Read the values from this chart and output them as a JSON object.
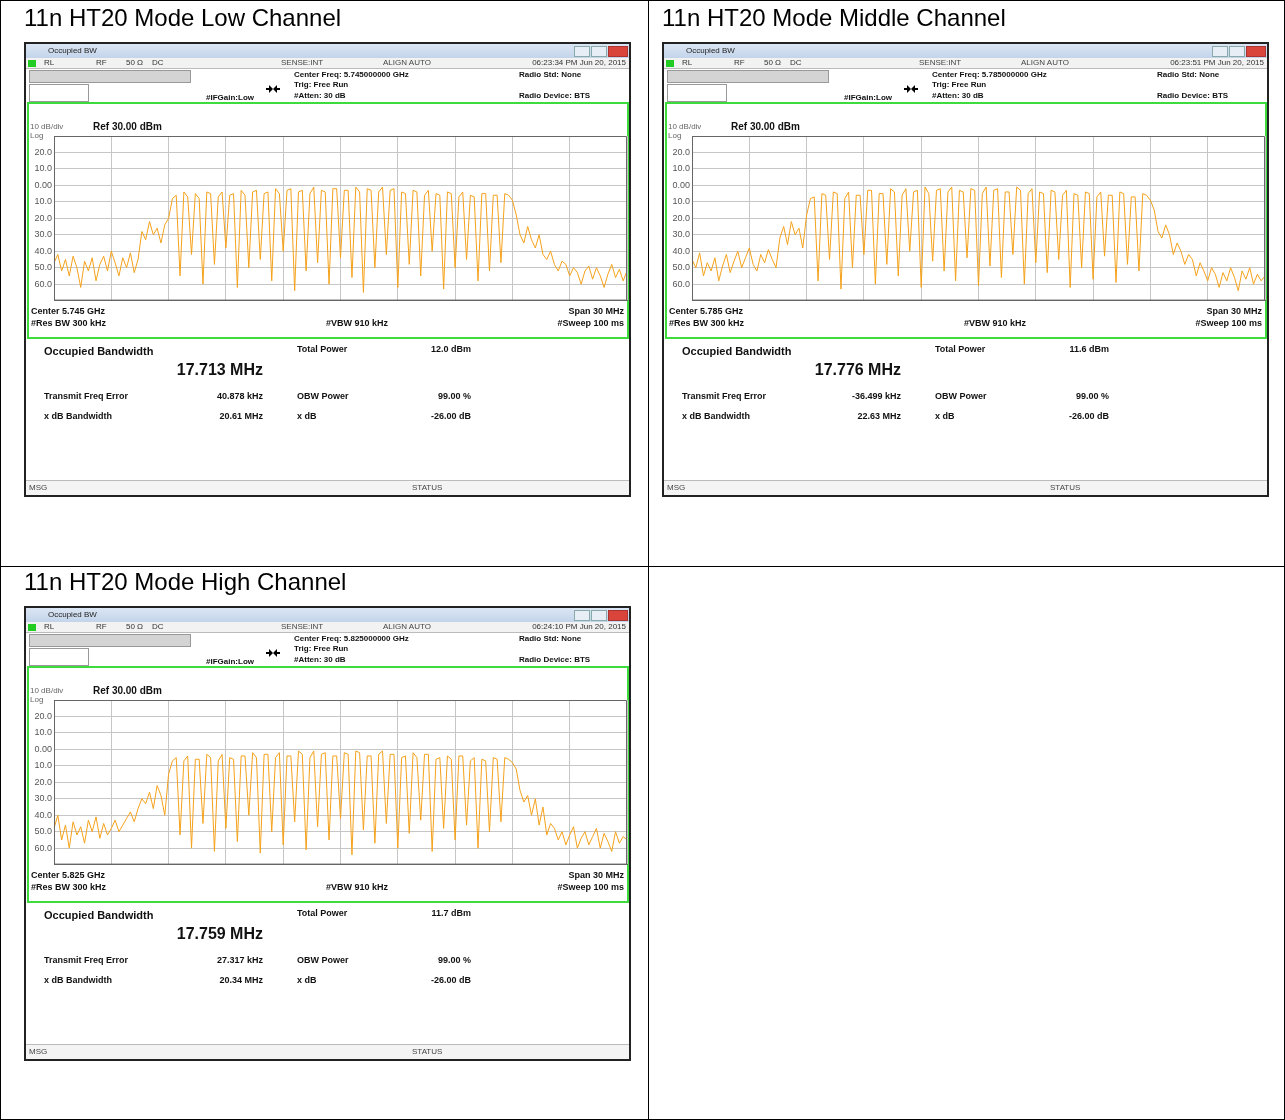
{
  "chart_data": [
    {
      "type": "line",
      "title": "11n HT20 Mode Low Channel",
      "color": "#f5a21b",
      "marker": "none",
      "grid": true,
      "tick_labels": "y",
      "categories": [
        null,
        null,
        null,
        null,
        null,
        null,
        null,
        null,
        null,
        null,
        null,
        null,
        null,
        null,
        null,
        null,
        null,
        null,
        null,
        null,
        null,
        null,
        null,
        null,
        null,
        null,
        null,
        null,
        null,
        null,
        null,
        null,
        null,
        null,
        null,
        null,
        null,
        null,
        null,
        null,
        null,
        null,
        null,
        null,
        null,
        null,
        null,
        null,
        null,
        null,
        null,
        null,
        null,
        null,
        null,
        null,
        null,
        null,
        null,
        null,
        null,
        null,
        null,
        null,
        null,
        null,
        null,
        null,
        null,
        null,
        null,
        null,
        null,
        null,
        null,
        null,
        null,
        null,
        null,
        null,
        null,
        null,
        null,
        null,
        null,
        null,
        null,
        null,
        null,
        null,
        null,
        null,
        null,
        null,
        null,
        null,
        null,
        null,
        null,
        null,
        null,
        null,
        null,
        null,
        null,
        null,
        null,
        null,
        null,
        null,
        null,
        null,
        null,
        null,
        null,
        null,
        null,
        null,
        null,
        null,
        null,
        null,
        null,
        null,
        null,
        null,
        null,
        null,
        null,
        null,
        null,
        null,
        null,
        null,
        null,
        null,
        null,
        null,
        null,
        null,
        null,
        null,
        null,
        null,
        null,
        null,
        null,
        null,
        null,
        null,
        null
      ],
      "ylim": [
        -70,
        30
      ],
      "yticks": [
        {
          "value": 20,
          "label": "20.0"
        },
        {
          "value": 10,
          "label": "10.0"
        },
        {
          "value": 0,
          "label": "0.00"
        },
        {
          "value": -10,
          "label": "10.0"
        },
        {
          "value": -20,
          "label": "20.0"
        },
        {
          "value": -30,
          "label": "30.0"
        },
        {
          "value": -40,
          "label": "40.0"
        },
        {
          "value": -50,
          "label": "50.0"
        },
        {
          "value": -60,
          "label": "60.0"
        }
      ],
      "values": [
        -47,
        -42,
        -52,
        -45,
        -55,
        -43,
        -50,
        -62,
        -46,
        -52,
        -44,
        -58,
        -48,
        -43,
        -52,
        -40,
        -47,
        -55,
        -44,
        -50,
        -41,
        -53,
        -45,
        -28,
        -33,
        -22,
        -30,
        -26,
        -35,
        -24,
        -20,
        -8,
        -6,
        -55,
        -4,
        -7,
        -42,
        -5,
        -8,
        -60,
        -4,
        -5,
        -48,
        -7,
        -4,
        -38,
        -6,
        -5,
        -62,
        -3,
        -6,
        -50,
        -4,
        -3,
        -45,
        -5,
        -4,
        -58,
        -2,
        -5,
        -40,
        -3,
        -2,
        -64,
        -4,
        -3,
        -52,
        -5,
        -1,
        -47,
        -3,
        -4,
        -60,
        -2,
        -2,
        -44,
        -3,
        -3,
        -56,
        -1,
        -4,
        -65,
        -2,
        -3,
        -50,
        -4,
        -1,
        -42,
        -3,
        -2,
        -62,
        -4,
        -5,
        -48,
        -3,
        -4,
        -55,
        -6,
        -3,
        -40,
        -5,
        -6,
        -63,
        -4,
        -5,
        -50,
        -7,
        -4,
        -45,
        -6,
        -7,
        -58,
        -5,
        -5,
        -52,
        -6,
        -6,
        -47,
        -5,
        -6,
        -9,
        -18,
        -30,
        -35,
        -25,
        -33,
        -38,
        -30,
        -42,
        -45,
        -40,
        -48,
        -52,
        -46,
        -48,
        -55,
        -50,
        -53,
        -60,
        -52,
        -49,
        -57,
        -50,
        -55,
        -62,
        -54,
        -48,
        -56,
        -51,
        -58,
        -52
      ],
      "annotations": [
        "Occupied BW",
        "RL",
        "RF",
        "50 Ω",
        "DC",
        "SENSE:INT",
        "ALIGN AUTO",
        "06:23:34 PM Jun 20, 2015",
        "Center Freq: 5.745000000 GHz",
        "Trig: Free Run",
        "#Atten: 30 dB",
        "#IFGain:Low",
        "Radio Std: None",
        "Radio Device: BTS",
        "10 dB/div",
        "Ref 30.00 dBm",
        "Log",
        "Center 5.745 GHz",
        "#Res BW 300 kHz",
        "#VBW 910 kHz",
        "Span 30 MHz",
        "#Sweep 100 ms",
        "Occupied Bandwidth",
        "17.713 MHz",
        "Total Power",
        "12.0 dBm",
        "Transmit Freq Error",
        "40.878 kHz",
        "x dB Bandwidth",
        "20.61 MHz",
        "OBW Power",
        "99.00 %",
        "x dB",
        "-26.00 dB",
        "MSG",
        "STATUS"
      ]
    },
    {
      "type": "line",
      "title": "11n HT20 Mode Middle Channel",
      "color": "#f5a21b",
      "marker": "none",
      "grid": true,
      "tick_labels": "y",
      "categories": [
        null,
        null,
        null,
        null,
        null,
        null,
        null,
        null,
        null,
        null,
        null,
        null,
        null,
        null,
        null,
        null,
        null,
        null,
        null,
        null,
        null,
        null,
        null,
        null,
        null,
        null,
        null,
        null,
        null,
        null,
        null,
        null,
        null,
        null,
        null,
        null,
        null,
        null,
        null,
        null,
        null,
        null,
        null,
        null,
        null,
        null,
        null,
        null,
        null,
        null,
        null,
        null,
        null,
        null,
        null,
        null,
        null,
        null,
        null,
        null,
        null,
        null,
        null,
        null,
        null,
        null,
        null,
        null,
        null,
        null,
        null,
        null,
        null,
        null,
        null,
        null,
        null,
        null,
        null,
        null,
        null,
        null,
        null,
        null,
        null,
        null,
        null,
        null,
        null,
        null,
        null,
        null,
        null,
        null,
        null,
        null,
        null,
        null,
        null,
        null,
        null,
        null,
        null,
        null,
        null,
        null,
        null,
        null,
        null,
        null,
        null,
        null,
        null,
        null,
        null,
        null,
        null,
        null,
        null,
        null,
        null,
        null,
        null,
        null,
        null,
        null,
        null,
        null,
        null,
        null,
        null,
        null,
        null,
        null,
        null,
        null,
        null,
        null,
        null,
        null,
        null,
        null,
        null,
        null,
        null,
        null,
        null,
        null,
        null,
        null,
        null
      ],
      "ylim": [
        -70,
        30
      ],
      "yticks": [
        {
          "value": 20,
          "label": "20.0"
        },
        {
          "value": 10,
          "label": "10.0"
        },
        {
          "value": 0,
          "label": "0.00"
        },
        {
          "value": -10,
          "label": "10.0"
        },
        {
          "value": -20,
          "label": "20.0"
        },
        {
          "value": -30,
          "label": "30.0"
        },
        {
          "value": -40,
          "label": "40.0"
        },
        {
          "value": -50,
          "label": "50.0"
        },
        {
          "value": -60,
          "label": "60.0"
        }
      ],
      "values": [
        -45,
        -50,
        -41,
        -55,
        -47,
        -52,
        -44,
        -58,
        -49,
        -42,
        -53,
        -46,
        -40,
        -50,
        -44,
        -38,
        -48,
        -52,
        -42,
        -47,
        -39,
        -45,
        -50,
        -32,
        -25,
        -36,
        -22,
        -30,
        -26,
        -38,
        -18,
        -8,
        -7,
        -58,
        -5,
        -6,
        -45,
        -4,
        -5,
        -63,
        -8,
        -4,
        -50,
        -6,
        -6,
        -42,
        -3,
        -3,
        -60,
        -5,
        -5,
        -48,
        -2,
        -4,
        -55,
        -6,
        -2,
        -40,
        -4,
        -3,
        -62,
        -1,
        -5,
        -46,
        -3,
        -2,
        -52,
        -4,
        -1,
        -58,
        -3,
        -4,
        -44,
        -2,
        -3,
        -61,
        -5,
        -1,
        -49,
        -3,
        -2,
        -56,
        -4,
        -4,
        -42,
        -1,
        -3,
        -60,
        -5,
        -2,
        -47,
        -4,
        -5,
        -53,
        -3,
        -4,
        -45,
        -6,
        -3,
        -62,
        -5,
        -6,
        -50,
        -4,
        -5,
        -57,
        -7,
        -4,
        -43,
        -6,
        -6,
        -59,
        -4,
        -5,
        -48,
        -7,
        -7,
        -52,
        -5,
        -6,
        -9,
        -15,
        -28,
        -32,
        -24,
        -30,
        -42,
        -35,
        -40,
        -48,
        -42,
        -45,
        -55,
        -47,
        -52,
        -58,
        -50,
        -54,
        -62,
        -53,
        -58,
        -50,
        -56,
        -64,
        -52,
        -57,
        -50,
        -60,
        -54,
        -58,
        -55
      ],
      "annotations": [
        "Occupied BW",
        "RL",
        "RF",
        "50 Ω",
        "DC",
        "SENSE:INT",
        "ALIGN AUTO",
        "06:23:51 PM Jun 20, 2015",
        "Center Freq: 5.785000000 GHz",
        "Trig: Free Run",
        "#Atten: 30 dB",
        "#IFGain:Low",
        "Radio Std: None",
        "Radio Device: BTS",
        "10 dB/div",
        "Ref 30.00 dBm",
        "Log",
        "Center 5.785 GHz",
        "#Res BW 300 kHz",
        "#VBW 910 kHz",
        "Span 30 MHz",
        "#Sweep 100 ms",
        "Occupied Bandwidth",
        "17.776 MHz",
        "Total Power",
        "11.6 dBm",
        "Transmit Freq Error",
        "-36.499 kHz",
        "x dB Bandwidth",
        "22.63 MHz",
        "OBW Power",
        "99.00 %",
        "x dB",
        "-26.00 dB",
        "MSG",
        "STATUS"
      ]
    },
    {
      "type": "line",
      "title": "11n HT20 Mode High Channel",
      "color": "#f5a21b",
      "marker": "none",
      "grid": true,
      "tick_labels": "y",
      "categories": [
        null,
        null,
        null,
        null,
        null,
        null,
        null,
        null,
        null,
        null,
        null,
        null,
        null,
        null,
        null,
        null,
        null,
        null,
        null,
        null,
        null,
        null,
        null,
        null,
        null,
        null,
        null,
        null,
        null,
        null,
        null,
        null,
        null,
        null,
        null,
        null,
        null,
        null,
        null,
        null,
        null,
        null,
        null,
        null,
        null,
        null,
        null,
        null,
        null,
        null,
        null,
        null,
        null,
        null,
        null,
        null,
        null,
        null,
        null,
        null,
        null,
        null,
        null,
        null,
        null,
        null,
        null,
        null,
        null,
        null,
        null,
        null,
        null,
        null,
        null,
        null,
        null,
        null,
        null,
        null,
        null,
        null,
        null,
        null,
        null,
        null,
        null,
        null,
        null,
        null,
        null,
        null,
        null,
        null,
        null,
        null,
        null,
        null,
        null,
        null,
        null,
        null,
        null,
        null,
        null,
        null,
        null,
        null,
        null,
        null,
        null,
        null,
        null,
        null,
        null,
        null,
        null,
        null,
        null,
        null,
        null,
        null,
        null,
        null,
        null,
        null,
        null,
        null,
        null,
        null,
        null,
        null,
        null,
        null,
        null,
        null,
        null,
        null,
        null,
        null,
        null,
        null,
        null,
        null,
        null,
        null,
        null,
        null,
        null,
        null,
        null
      ],
      "ylim": [
        -70,
        30
      ],
      "yticks": [
        {
          "value": 20,
          "label": "20.0"
        },
        {
          "value": 10,
          "label": "10.0"
        },
        {
          "value": 0,
          "label": "0.00"
        },
        {
          "value": -10,
          "label": "10.0"
        },
        {
          "value": -20,
          "label": "20.0"
        },
        {
          "value": -30,
          "label": "30.0"
        },
        {
          "value": -40,
          "label": "40.0"
        },
        {
          "value": -50,
          "label": "50.0"
        },
        {
          "value": -60,
          "label": "60.0"
        }
      ],
      "values": [
        -48,
        -40,
        -55,
        -46,
        -60,
        -44,
        -52,
        -47,
        -57,
        -43,
        -50,
        -41,
        -54,
        -45,
        -52,
        -48,
        -43,
        -50,
        -46,
        -42,
        -38,
        -44,
        -36,
        -30,
        -33,
        -26,
        -36,
        -22,
        -28,
        -40,
        -15,
        -7,
        -5,
        -52,
        -7,
        -4,
        -60,
        -6,
        -6,
        -45,
        -3,
        -5,
        -62,
        -7,
        -3,
        -48,
        -5,
        -6,
        -56,
        -4,
        -4,
        -40,
        -2,
        -5,
        -63,
        -3,
        -3,
        -50,
        -5,
        -2,
        -58,
        -4,
        -4,
        -44,
        -1,
        -3,
        -61,
        -5,
        -1,
        -47,
        -3,
        -2,
        -55,
        -4,
        -4,
        -42,
        -2,
        -3,
        -64,
        -1,
        -2,
        -49,
        -4,
        -4,
        -57,
        -3,
        -1,
        -45,
        -3,
        -3,
        -60,
        -5,
        -4,
        -51,
        -2,
        -5,
        -43,
        -3,
        -3,
        -62,
        -6,
        -5,
        -48,
        -4,
        -6,
        -55,
        -4,
        -4,
        -46,
        -7,
        -5,
        -60,
        -6,
        -7,
        -50,
        -5,
        -6,
        -44,
        -5,
        -6,
        -8,
        -12,
        -25,
        -32,
        -28,
        -40,
        -30,
        -46,
        -35,
        -52,
        -45,
        -48,
        -55,
        -50,
        -58,
        -52,
        -47,
        -60,
        -54,
        -50,
        -58,
        -53,
        -48,
        -60,
        -51,
        -56,
        -62,
        -50,
        -57,
        -53,
        -55
      ],
      "annotations": [
        "Occupied BW",
        "RL",
        "RF",
        "50 Ω",
        "DC",
        "SENSE:INT",
        "ALIGN AUTO",
        "06:24:10 PM Jun 20, 2015",
        "Center Freq: 5.825000000 GHz",
        "Trig: Free Run",
        "#Atten: 30 dB",
        "#IFGain:Low",
        "Radio Std: None",
        "Radio Device: BTS",
        "10 dB/div",
        "Ref 30.00 dBm",
        "Log",
        "Center 5.825 GHz",
        "#Res BW 300 kHz",
        "#VBW 910 kHz",
        "Span 30 MHz",
        "#Sweep 100 ms",
        "Occupied Bandwidth",
        "17.759 MHz",
        "Total Power",
        "11.7 dBm",
        "Transmit Freq Error",
        "27.317 kHz",
        "x dB Bandwidth",
        "20.34 MHz",
        "OBW Power",
        "99.00 %",
        "x dB",
        "-26.00 dB",
        "MSG",
        "STATUS"
      ]
    }
  ]
}
